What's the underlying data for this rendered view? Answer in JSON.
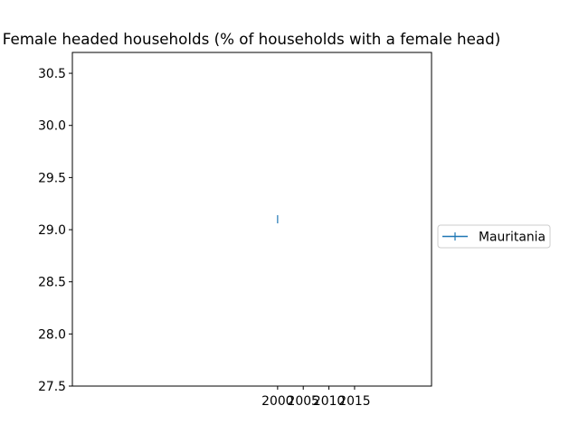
{
  "chart_data": {
    "type": "line",
    "title": "Female headed households (% of households with a female head)",
    "xlabel": "",
    "ylabel": "",
    "x_ticks": [
      "2000",
      "2005",
      "2010",
      "2015"
    ],
    "y_ticks": [
      "27.5",
      "28.0",
      "28.5",
      "29.0",
      "29.5",
      "30.0",
      "30.5"
    ],
    "xlim": [
      1960,
      2030
    ],
    "ylim": [
      27.5,
      30.7
    ],
    "grid": false,
    "legend_position": "center-right, outside",
    "series": [
      {
        "name": "Mauritania",
        "color": "#1f77b4",
        "marker": "|",
        "points": [
          {
            "x": 2000,
            "y": 29.1
          }
        ]
      }
    ]
  }
}
